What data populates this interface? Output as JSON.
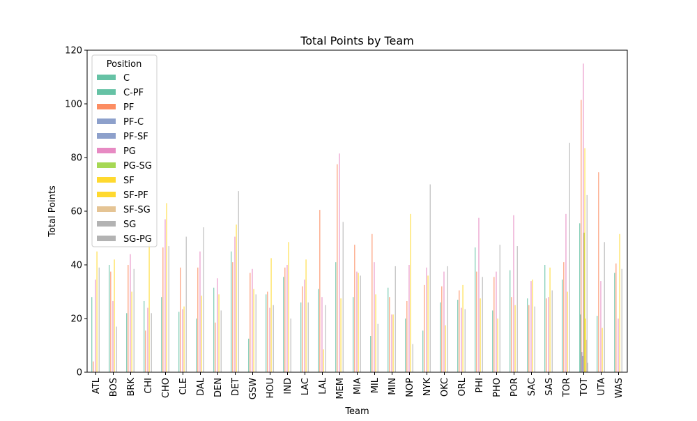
{
  "chart_data": {
    "type": "bar",
    "title": "Total Points by Team",
    "xlabel": "Team",
    "ylabel": "Total Points",
    "ylim": [
      0,
      120
    ],
    "yticks": [
      0,
      20,
      40,
      60,
      80,
      100,
      120
    ],
    "legend_title": "Position",
    "legend_position": "top-left",
    "categories": [
      "ATL",
      "BOS",
      "BRK",
      "CHI",
      "CHO",
      "CLE",
      "DAL",
      "DEN",
      "DET",
      "GSW",
      "HOU",
      "IND",
      "LAC",
      "LAL",
      "MEM",
      "MIA",
      "MIL",
      "MIN",
      "NOP",
      "NYK",
      "OKC",
      "ORL",
      "PHI",
      "PHO",
      "POR",
      "SAC",
      "SAS",
      "TOR",
      "TOT",
      "UTA",
      "WAS"
    ],
    "series": [
      {
        "name": "C",
        "color": "#66c2a5",
        "values": [
          28,
          40,
          22,
          26.5,
          28,
          22.5,
          20,
          31.5,
          45,
          12.5,
          29,
          35.5,
          26,
          31,
          41,
          28,
          13.5,
          31.5,
          20,
          15.5,
          26,
          27,
          46.5,
          23,
          38,
          27.5,
          40,
          34.5,
          55.5,
          21,
          37
        ]
      },
      {
        "name": "C-PF",
        "color": "#66c2a5",
        "values": [
          0,
          0,
          0,
          0,
          0,
          0,
          0,
          0,
          0,
          0,
          0,
          0,
          0,
          0,
          0,
          0,
          0,
          0,
          0,
          0,
          0,
          0,
          0,
          0,
          0,
          0,
          0,
          0,
          21.5,
          0,
          0
        ]
      },
      {
        "name": "PF",
        "color": "#fc8d62",
        "values": [
          4,
          37.5,
          40,
          15.5,
          46.5,
          39,
          39,
          18.5,
          41,
          37,
          30,
          39,
          32,
          60.5,
          77.5,
          47.5,
          51.5,
          28,
          26.5,
          32.5,
          32,
          30.5,
          37.5,
          35.5,
          28,
          25,
          27.5,
          41,
          101.5,
          74.5,
          40.5
        ]
      },
      {
        "name": "PF-C",
        "color": "#8da0cb",
        "values": [
          0,
          0,
          0,
          0,
          0,
          0,
          0,
          0,
          0,
          0,
          0,
          0,
          0,
          0,
          0,
          0,
          0,
          0,
          0,
          0,
          0,
          0,
          0,
          0,
          0,
          0,
          0,
          0,
          7.5,
          0,
          0
        ]
      },
      {
        "name": "PF-SF",
        "color": "#8da0cb",
        "values": [
          0,
          0,
          0,
          0,
          0,
          0,
          0,
          0,
          0,
          0,
          0,
          0,
          0,
          0,
          0,
          0,
          0,
          0,
          0,
          0,
          0,
          0,
          0,
          0,
          0,
          0,
          0,
          0,
          6,
          0,
          0
        ]
      },
      {
        "name": "PG",
        "color": "#e78ac3",
        "values": [
          34.5,
          26.5,
          44,
          24,
          57,
          23.5,
          45,
          35,
          50.5,
          38.5,
          24,
          40,
          34.5,
          28,
          81.5,
          37.5,
          41,
          21.5,
          40,
          39,
          37.5,
          24,
          57.5,
          37.5,
          58.5,
          34,
          28,
          59,
          115,
          34,
          20
        ]
      },
      {
        "name": "PG-SG",
        "color": "#a6d854",
        "values": [
          0,
          0,
          0,
          0,
          0,
          0,
          0,
          0,
          0,
          0,
          0,
          0,
          0,
          0,
          0,
          0,
          0,
          0,
          0,
          0,
          0,
          0,
          0,
          0,
          0,
          0,
          0,
          0,
          52,
          0,
          0
        ]
      },
      {
        "name": "SF",
        "color": "#ffd92f",
        "values": [
          45,
          42,
          30,
          48.5,
          63,
          24.5,
          28.5,
          29,
          55,
          31,
          42.5,
          48.5,
          42,
          8.5,
          27.5,
          37,
          29,
          21.5,
          59,
          36,
          17.5,
          32.5,
          27.5,
          20,
          25,
          34.5,
          39,
          30,
          83.5,
          16.5,
          51.5
        ]
      },
      {
        "name": "SF-PF",
        "color": "#ffd92f",
        "values": [
          0,
          0,
          0,
          0,
          0,
          0,
          0,
          0,
          0,
          0,
          0,
          0,
          0,
          0,
          0,
          0,
          0,
          0,
          0,
          0,
          0,
          0,
          0,
          0,
          0,
          0,
          0,
          0,
          20,
          0,
          0
        ]
      },
      {
        "name": "SF-SG",
        "color": "#e5c494",
        "values": [
          0,
          0,
          0,
          0,
          0,
          0,
          0,
          0,
          0,
          0,
          0,
          0,
          0,
          0,
          0,
          0,
          0,
          0,
          0,
          0,
          0,
          0,
          0,
          0,
          0,
          0,
          0,
          0,
          12,
          0,
          0
        ]
      },
      {
        "name": "SG",
        "color": "#b3b3b3",
        "values": [
          39,
          17,
          38.5,
          22,
          47,
          50.5,
          54,
          23,
          67.5,
          29,
          25,
          20,
          26,
          25,
          56,
          36,
          18,
          39.5,
          10.5,
          70,
          39.5,
          23.5,
          35.5,
          47.5,
          47,
          24.5,
          30.5,
          85.5,
          66,
          48.5,
          38.5
        ]
      },
      {
        "name": "SG-PG",
        "color": "#b3b3b3",
        "values": [
          0,
          0,
          0,
          0,
          0,
          0,
          0,
          0,
          0,
          0,
          0,
          0,
          0,
          0,
          0,
          0,
          0,
          0,
          0,
          0,
          0,
          0,
          0,
          0,
          0,
          0,
          0,
          0,
          3.5,
          0,
          0
        ]
      }
    ]
  }
}
